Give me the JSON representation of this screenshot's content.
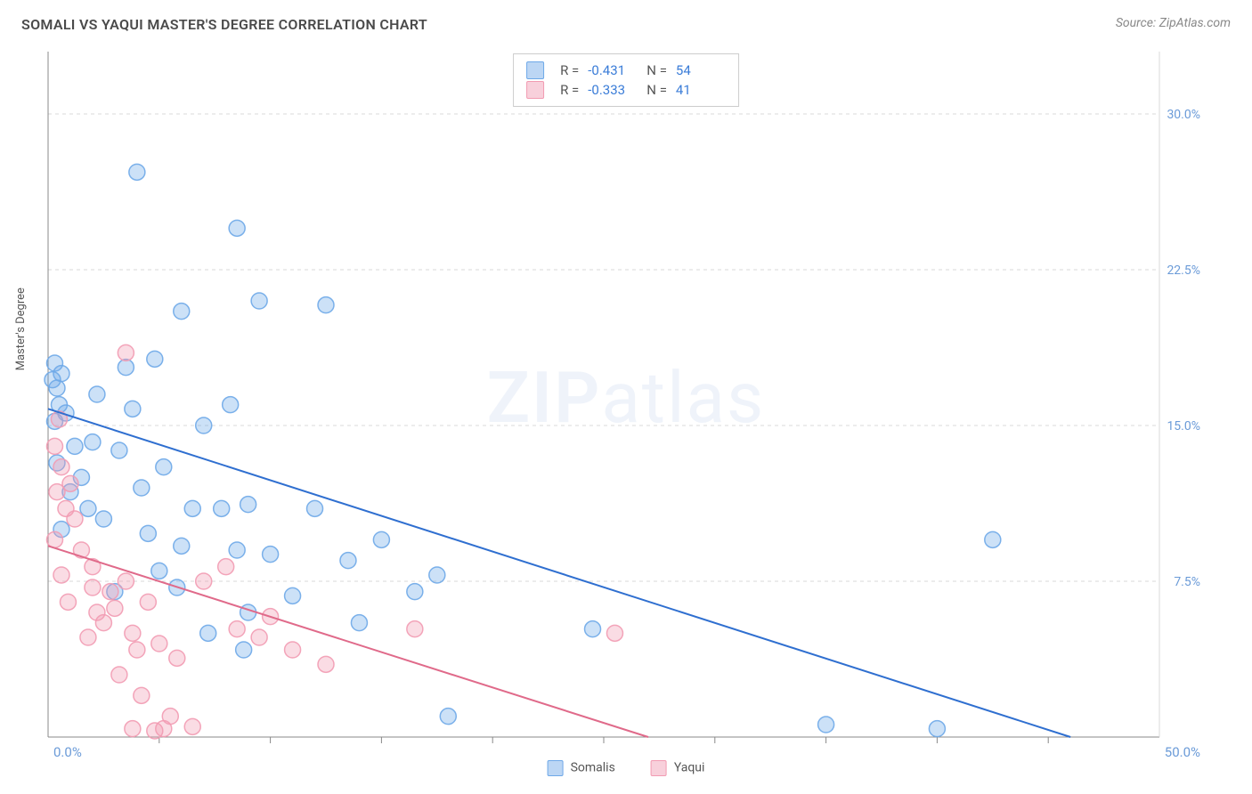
{
  "title": "SOMALI VS YAQUI MASTER'S DEGREE CORRELATION CHART",
  "source": "Source: ZipAtlas.com",
  "ylabel": "Master's Degree",
  "watermark": {
    "bold": "ZIP",
    "rest": "atlas"
  },
  "chart": {
    "type": "scatter",
    "xlim": [
      0,
      50
    ],
    "ylim": [
      0,
      33
    ],
    "xticks": [
      5,
      10,
      15,
      20,
      25,
      30,
      35,
      40,
      45
    ],
    "yGridlines": [
      7.5,
      15.0,
      22.5,
      30.0
    ],
    "yGridLabels": [
      "7.5%",
      "15.0%",
      "22.5%",
      "30.0%"
    ],
    "xCornerLabel": "0.0%",
    "xFarLabel": "50.0%",
    "background_color": "#ffffff",
    "grid_color": "#d8d8d8",
    "axis_color": "#888888",
    "tick_label_color": "#6b9bd8",
    "marker_radius": 9,
    "marker_fill_opacity": 0.35,
    "marker_stroke_opacity": 0.9,
    "marker_stroke_width": 1.5,
    "regression_line_width": 2,
    "series": [
      {
        "name": "Somalis",
        "color": "#6ea8e8",
        "line_color": "#2f6fd0",
        "legend_fill": "#bcd6f4",
        "legend_stroke": "#6ea8e8",
        "R": "-0.431",
        "N": "54",
        "reg_from": [
          0,
          15.8
        ],
        "reg_to": [
          46,
          0
        ],
        "points": [
          [
            0.2,
            17.2
          ],
          [
            0.3,
            18.0
          ],
          [
            0.4,
            16.8
          ],
          [
            0.6,
            17.5
          ],
          [
            0.5,
            16.0
          ],
          [
            0.3,
            15.2
          ],
          [
            4.0,
            27.2
          ],
          [
            8.5,
            24.5
          ],
          [
            9.5,
            21.0
          ],
          [
            6.0,
            20.5
          ],
          [
            12.5,
            20.8
          ],
          [
            3.5,
            17.8
          ],
          [
            4.8,
            18.2
          ],
          [
            2.0,
            14.2
          ],
          [
            3.2,
            13.8
          ],
          [
            5.2,
            13.0
          ],
          [
            7.0,
            15.0
          ],
          [
            8.2,
            16.0
          ],
          [
            9.0,
            11.2
          ],
          [
            6.5,
            11.0
          ],
          [
            7.8,
            11.0
          ],
          [
            6.0,
            9.2
          ],
          [
            8.5,
            9.0
          ],
          [
            10.0,
            8.8
          ],
          [
            5.0,
            8.0
          ],
          [
            3.0,
            7.0
          ],
          [
            12.0,
            11.0
          ],
          [
            13.5,
            8.5
          ],
          [
            15.0,
            9.5
          ],
          [
            11.0,
            6.8
          ],
          [
            9.0,
            6.0
          ],
          [
            16.5,
            7.0
          ],
          [
            17.5,
            7.8
          ],
          [
            14.0,
            5.5
          ],
          [
            18.0,
            1.0
          ],
          [
            0.8,
            15.6
          ],
          [
            1.2,
            14.0
          ],
          [
            1.5,
            12.5
          ],
          [
            2.5,
            10.5
          ],
          [
            4.5,
            9.8
          ],
          [
            35.0,
            0.6
          ],
          [
            40.0,
            0.4
          ],
          [
            42.5,
            9.5
          ],
          [
            24.5,
            5.2
          ],
          [
            0.4,
            13.2
          ],
          [
            1.0,
            11.8
          ],
          [
            1.8,
            11.0
          ],
          [
            0.6,
            10.0
          ],
          [
            2.2,
            16.5
          ],
          [
            3.8,
            15.8
          ],
          [
            4.2,
            12.0
          ],
          [
            5.8,
            7.2
          ],
          [
            7.2,
            5.0
          ],
          [
            8.8,
            4.2
          ]
        ]
      },
      {
        "name": "Yaqui",
        "color": "#f29bb2",
        "line_color": "#e06a8a",
        "legend_fill": "#f8d0db",
        "legend_stroke": "#f29bb2",
        "R": "-0.333",
        "N": "41",
        "reg_from": [
          0,
          9.2
        ],
        "reg_to": [
          27,
          0
        ],
        "points": [
          [
            0.5,
            15.3
          ],
          [
            0.3,
            14.0
          ],
          [
            0.6,
            13.0
          ],
          [
            3.5,
            18.5
          ],
          [
            1.0,
            12.2
          ],
          [
            0.4,
            11.8
          ],
          [
            0.8,
            11.0
          ],
          [
            1.2,
            10.5
          ],
          [
            0.3,
            9.5
          ],
          [
            1.5,
            9.0
          ],
          [
            2.0,
            8.2
          ],
          [
            0.6,
            7.8
          ],
          [
            2.0,
            7.2
          ],
          [
            2.8,
            7.0
          ],
          [
            3.5,
            7.5
          ],
          [
            2.2,
            6.0
          ],
          [
            3.0,
            6.2
          ],
          [
            4.5,
            6.5
          ],
          [
            3.8,
            5.0
          ],
          [
            2.5,
            5.5
          ],
          [
            4.0,
            4.2
          ],
          [
            5.0,
            4.5
          ],
          [
            5.8,
            3.8
          ],
          [
            3.2,
            3.0
          ],
          [
            4.2,
            2.0
          ],
          [
            5.5,
            1.0
          ],
          [
            3.8,
            0.4
          ],
          [
            4.8,
            0.3
          ],
          [
            5.2,
            0.4
          ],
          [
            8.0,
            8.2
          ],
          [
            9.5,
            4.8
          ],
          [
            11.0,
            4.2
          ],
          [
            12.5,
            3.5
          ],
          [
            7.0,
            7.5
          ],
          [
            8.5,
            5.2
          ],
          [
            10.0,
            5.8
          ],
          [
            16.5,
            5.2
          ],
          [
            25.5,
            5.0
          ],
          [
            6.5,
            0.5
          ],
          [
            1.8,
            4.8
          ],
          [
            0.9,
            6.5
          ]
        ]
      }
    ]
  },
  "bottom_legend": [
    {
      "label": "Somalis",
      "fill": "#bcd6f4",
      "stroke": "#6ea8e8"
    },
    {
      "label": "Yaqui",
      "fill": "#f8d0db",
      "stroke": "#f29bb2"
    }
  ],
  "top_legend_labels": {
    "R": "R =",
    "N": "N ="
  }
}
